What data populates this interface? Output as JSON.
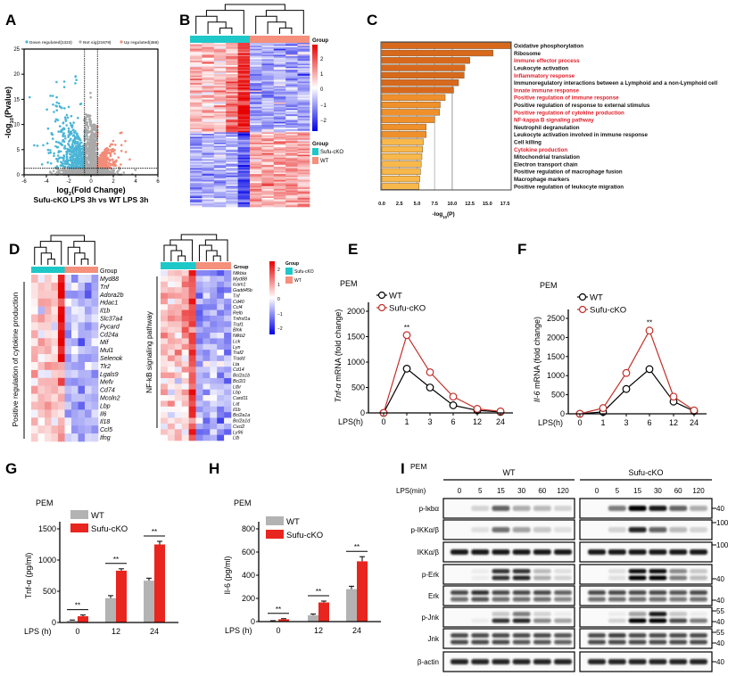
{
  "panel_labels": [
    "A",
    "B",
    "C",
    "D",
    "E",
    "F",
    "G",
    "H",
    "I"
  ],
  "colors": {
    "sufu_cko_group": "#1ec8c8",
    "wt_group": "#f4907c",
    "down": "#4bb5d6",
    "not_sig": "#a9a9a9",
    "up": "#f28c78",
    "heat_high": "#e60000",
    "heat_low": "#0000e6",
    "ko_line": "#c0302a",
    "wt_line": "#000000",
    "wt_bar": "#b3b3b3",
    "ko_bar": "#e8251e",
    "go_dark": "#d8691c",
    "go_mid": "#f0902a",
    "go_light": "#f8b84a",
    "go_highlight_text": "#e0202a"
  },
  "chart_data": [
    {
      "type": "scatter",
      "legend": [
        {
          "label": "Down regulated(1323)",
          "color": "#4bb5d6"
        },
        {
          "label": "Not sig(21679)",
          "color": "#a9a9a9"
        },
        {
          "label": "Up regulated(466)",
          "color": "#f28c78"
        }
      ],
      "xlabel": {
        "pre": "log",
        "sub": "2",
        "post": "(Fold Change)"
      },
      "ylabel": {
        "pre": "-log",
        "sub": "10",
        "post": "(Pvalue)"
      },
      "subtitle": "Sufu-cKO LPS 3h vs WT LPS 3h",
      "xlim": [
        -6,
        6
      ],
      "ylim": [
        0,
        25
      ],
      "xticks": [
        -6,
        -4,
        -2,
        0,
        2,
        4,
        6
      ],
      "yticks": [
        0,
        5,
        10,
        15,
        20,
        25
      ],
      "thresholds": {
        "log2fc": 0.58,
        "neglog10p": 1.3
      }
    },
    {
      "type": "heatmap",
      "group_title": "Group",
      "groups": [
        {
          "label": "Sufu-cKO",
          "color": "#1ec8c8"
        },
        {
          "label": "WT",
          "color": "#f4907c"
        }
      ],
      "colorbar_title": "Group",
      "colorbar_ticks": [
        "2",
        "1",
        "0",
        "−1",
        "−2"
      ],
      "columns_per_group": 5
    },
    {
      "type": "bar",
      "orientation": "horizontal",
      "categories": [
        "Oxidative phosphorylation",
        "Ribosome",
        "Immune effector process",
        "Leukocyte activation",
        "Inflammatory response",
        "Immunoregulatory interactions between a Lymphoid and a non-Lymphoid cell",
        "Innate immune response",
        "Positive regulation of immune response",
        "Positive regulation of response to external stimulus",
        "Positive regulation of cytokine production",
        "NF-kappa B signaling pathway",
        "Neutrophil degranulation",
        "Leukocyte activation involved in immune response",
        "Cell killing",
        "Cytokine production",
        "Mitochondrial translation",
        "Electron transport chain",
        "Positive regulation of macrophage fusion",
        "Macrophage markers",
        "Positive regulation of leukocyte migration"
      ],
      "highlighted": [
        false,
        false,
        true,
        false,
        true,
        false,
        true,
        true,
        false,
        true,
        true,
        false,
        false,
        false,
        true,
        false,
        false,
        false,
        false,
        false
      ],
      "values": [
        18.3,
        15.8,
        12.5,
        11.8,
        11.7,
        10.9,
        10.2,
        9.0,
        8.3,
        8.2,
        7.5,
        6.3,
        6.3,
        5.9,
        5.8,
        5.7,
        5.6,
        5.5,
        5.4,
        5.3
      ],
      "xlabel": {
        "pre": "-log",
        "sub": "10",
        "post": "(P)"
      },
      "xticks": [
        "0.0",
        "2.5",
        "5.0",
        "7.5",
        "10.0",
        "12.5",
        "15.0",
        "17.5"
      ],
      "xlim": [
        0,
        19
      ]
    },
    {
      "type": "heatmap",
      "row_group_label": "Positive regulation of cytokine production",
      "group_title": "Group",
      "genes": [
        "Myd88",
        "Tnf",
        "Adora2b",
        "Hdac1",
        "Il1b",
        "Slc37a4",
        "Pycard",
        "Cd24a",
        "Mif",
        "Mul1",
        "Selenok",
        "Tlr2",
        "Lgals9",
        "Mefv",
        "Cd74",
        "Mcoln2",
        "Lbp",
        "Il6",
        "Il18",
        "Ccl5",
        "Ifng"
      ]
    },
    {
      "type": "heatmap",
      "row_group_label": "NF-kB signaling pathway",
      "group_title": "Group",
      "genes": [
        "Nfkbia",
        "Myd88",
        "Icam1",
        "Gadd45b",
        "Tnf",
        "Cd40",
        "Ccl4",
        "Relb",
        "Tnfrsf1a",
        "Traf1",
        "Blnk",
        "Nfkb2",
        "Lck",
        "Lyn",
        "Traf2",
        "Tradd",
        "Lta",
        "Cd14",
        "Bcl2a1b",
        "Bcl2l1",
        "Ltbr",
        "Lbp",
        "Card11",
        "Lat",
        "Il1b",
        "Bcl2a1a",
        "Bcl2a1d",
        "Cxcl2",
        "Ly96",
        "Ltb"
      ],
      "colorbar_ticks": [
        "2",
        "1",
        "0",
        "−1",
        "−2"
      ],
      "legend_title": "Group",
      "groups": [
        {
          "label": "Sufu-cKO",
          "color": "#1ec8c8"
        },
        {
          "label": "WT",
          "color": "#f4907c"
        }
      ]
    },
    {
      "type": "line",
      "cell": "PEM",
      "ylabel": {
        "gene": "Tnf-α",
        "post": " mRNA (fold change)"
      },
      "xlabel": "LPS(h)",
      "categories": [
        "0",
        "1",
        "3",
        "6",
        "12",
        "24"
      ],
      "yticks": [
        0,
        500,
        1000,
        1500,
        2000
      ],
      "ylim": [
        0,
        2000
      ],
      "series": [
        {
          "name": "WT",
          "values": [
            0,
            870,
            500,
            150,
            50,
            20
          ],
          "color": "#000000"
        },
        {
          "name": "Sufu-cKO",
          "values": [
            0,
            1530,
            800,
            320,
            80,
            30
          ],
          "color": "#c0302a"
        }
      ],
      "annotations": [
        {
          "category": "1",
          "text": "**"
        }
      ]
    },
    {
      "type": "line",
      "cell": "PEM",
      "ylabel": {
        "gene": "Il-6",
        "post": " mRNA (fold change)"
      },
      "xlabel": "LPS(h)",
      "categories": [
        "0",
        "1",
        "3",
        "6",
        "12",
        "24"
      ],
      "yticks": [
        0,
        500,
        1000,
        1500,
        2000,
        2500
      ],
      "ylim": [
        0,
        2500
      ],
      "series": [
        {
          "name": "WT",
          "values": [
            0,
            50,
            650,
            1170,
            320,
            70
          ],
          "color": "#000000"
        },
        {
          "name": "Sufu-cKO",
          "values": [
            0,
            150,
            1070,
            2180,
            450,
            90
          ],
          "color": "#c0302a"
        }
      ],
      "annotations": [
        {
          "category": "6",
          "text": "**"
        }
      ]
    },
    {
      "type": "bar",
      "cell": "PEM",
      "ylabel": "Tnf-α (pg/ml)",
      "xlabel": "LPS (h)",
      "categories": [
        "0",
        "12",
        "24"
      ],
      "yticks": [
        0,
        500,
        1000,
        1500
      ],
      "ylim": [
        0,
        1500
      ],
      "series": [
        {
          "name": "WT",
          "values": [
            30,
            390,
            670
          ],
          "errors": [
            10,
            40,
            40
          ],
          "color": "#b3b3b3"
        },
        {
          "name": "Sufu-cKO",
          "values": [
            100,
            830,
            1250
          ],
          "errors": [
            20,
            30,
            50
          ],
          "color": "#e8251e"
        }
      ],
      "significance": [
        "**",
        "**",
        "**"
      ]
    },
    {
      "type": "bar",
      "cell": "PEM",
      "ylabel": "Il-6 (pg/ml)",
      "xlabel": "LPS (h)",
      "categories": [
        "0",
        "12",
        "24"
      ],
      "yticks": [
        0,
        200,
        400,
        600,
        800
      ],
      "ylim": [
        0,
        800
      ],
      "series": [
        {
          "name": "WT",
          "values": [
            5,
            55,
            280
          ],
          "errors": [
            3,
            10,
            25
          ],
          "color": "#b3b3b3"
        },
        {
          "name": "Sufu-cKO",
          "values": [
            20,
            165,
            520
          ],
          "errors": [
            5,
            12,
            40
          ],
          "color": "#e8251e"
        }
      ],
      "significance": [
        "**",
        "**",
        "**"
      ]
    },
    {
      "type": "western_blot",
      "cell": "PEM",
      "groups": [
        "WT",
        "Sufu-cKO"
      ],
      "time_label": "LPS(min)",
      "timepoints": [
        "0",
        "5",
        "15",
        "30",
        "60",
        "120"
      ],
      "rows": [
        {
          "label": "p-Iκbα",
          "markers": [
            "40"
          ],
          "bands": [
            {
              "wt": [
                0,
                0.15,
                0.6,
                0.3,
                0.25,
                0.15
              ],
              "ko": [
                0,
                0.5,
                1,
                0.9,
                0.6,
                0.3
              ]
            }
          ]
        },
        {
          "label": "p-IKKα/β",
          "markers": [
            "100"
          ],
          "bands": [
            {
              "wt": [
                0,
                0.1,
                0.55,
                0.35,
                0.2,
                0.1
              ],
              "ko": [
                0,
                0.15,
                0.85,
                0.6,
                0.25,
                0.15
              ]
            }
          ]
        },
        {
          "label": "IKKα/β",
          "markers": [
            "100"
          ],
          "bands": [
            {
              "wt": [
                0.9,
                0.9,
                0.9,
                0.9,
                0.9,
                0.9
              ],
              "ko": [
                0.9,
                0.9,
                0.9,
                0.9,
                0.9,
                0.9
              ]
            }
          ]
        },
        {
          "label": "p-Erk",
          "markers": [
            "40"
          ],
          "bands": [
            {
              "wt": [
                0,
                0.05,
                0.8,
                0.8,
                0.25,
                0.1
              ],
              "ko": [
                0,
                0.1,
                0.95,
                0.95,
                0.45,
                0.2
              ]
            },
            {
              "wt": [
                0,
                0.05,
                0.8,
                0.85,
                0.3,
                0.15
              ],
              "ko": [
                0,
                0.1,
                1,
                1,
                0.5,
                0.25
              ]
            }
          ]
        },
        {
          "label": "Erk",
          "markers": [
            "40"
          ],
          "bands": [
            {
              "wt": [
                0.7,
                0.8,
                0.7,
                0.7,
                0.7,
                0.6
              ],
              "ko": [
                0.7,
                0.7,
                0.7,
                0.7,
                0.65,
                0.7
              ]
            },
            {
              "wt": [
                0.55,
                0.65,
                0.55,
                0.55,
                0.55,
                0.45
              ],
              "ko": [
                0.55,
                0.55,
                0.55,
                0.55,
                0.5,
                0.55
              ]
            }
          ]
        },
        {
          "label": "p-Jnk",
          "markers": [
            "55",
            "40"
          ],
          "bands": [
            {
              "wt": [
                0,
                0,
                0.2,
                0.5,
                0.15,
                0.05
              ],
              "ko": [
                0,
                0.05,
                0.35,
                0.9,
                0.2,
                0.05
              ]
            },
            {
              "wt": [
                0,
                0.05,
                0.8,
                0.85,
                0.45,
                0.35
              ],
              "ko": [
                0,
                0.15,
                1,
                1,
                0.7,
                0.5
              ]
            }
          ]
        },
        {
          "label": "Jnk",
          "markers": [
            "55",
            "40"
          ],
          "bands": [
            {
              "wt": [
                0.7,
                0.7,
                0.7,
                0.7,
                0.7,
                0.65
              ],
              "ko": [
                0.7,
                0.75,
                0.7,
                0.7,
                0.7,
                0.7
              ]
            },
            {
              "wt": [
                0.7,
                0.7,
                0.7,
                0.65,
                0.65,
                0.6
              ],
              "ko": [
                0.7,
                0.7,
                0.7,
                0.7,
                0.7,
                0.7
              ]
            }
          ]
        },
        {
          "label": "β-actin",
          "markers": [
            "40"
          ],
          "bands": [
            {
              "wt": [
                0.85,
                0.85,
                0.85,
                0.85,
                0.85,
                0.85
              ],
              "ko": [
                0.85,
                0.85,
                0.85,
                0.85,
                0.85,
                0.85
              ]
            }
          ]
        }
      ]
    }
  ]
}
